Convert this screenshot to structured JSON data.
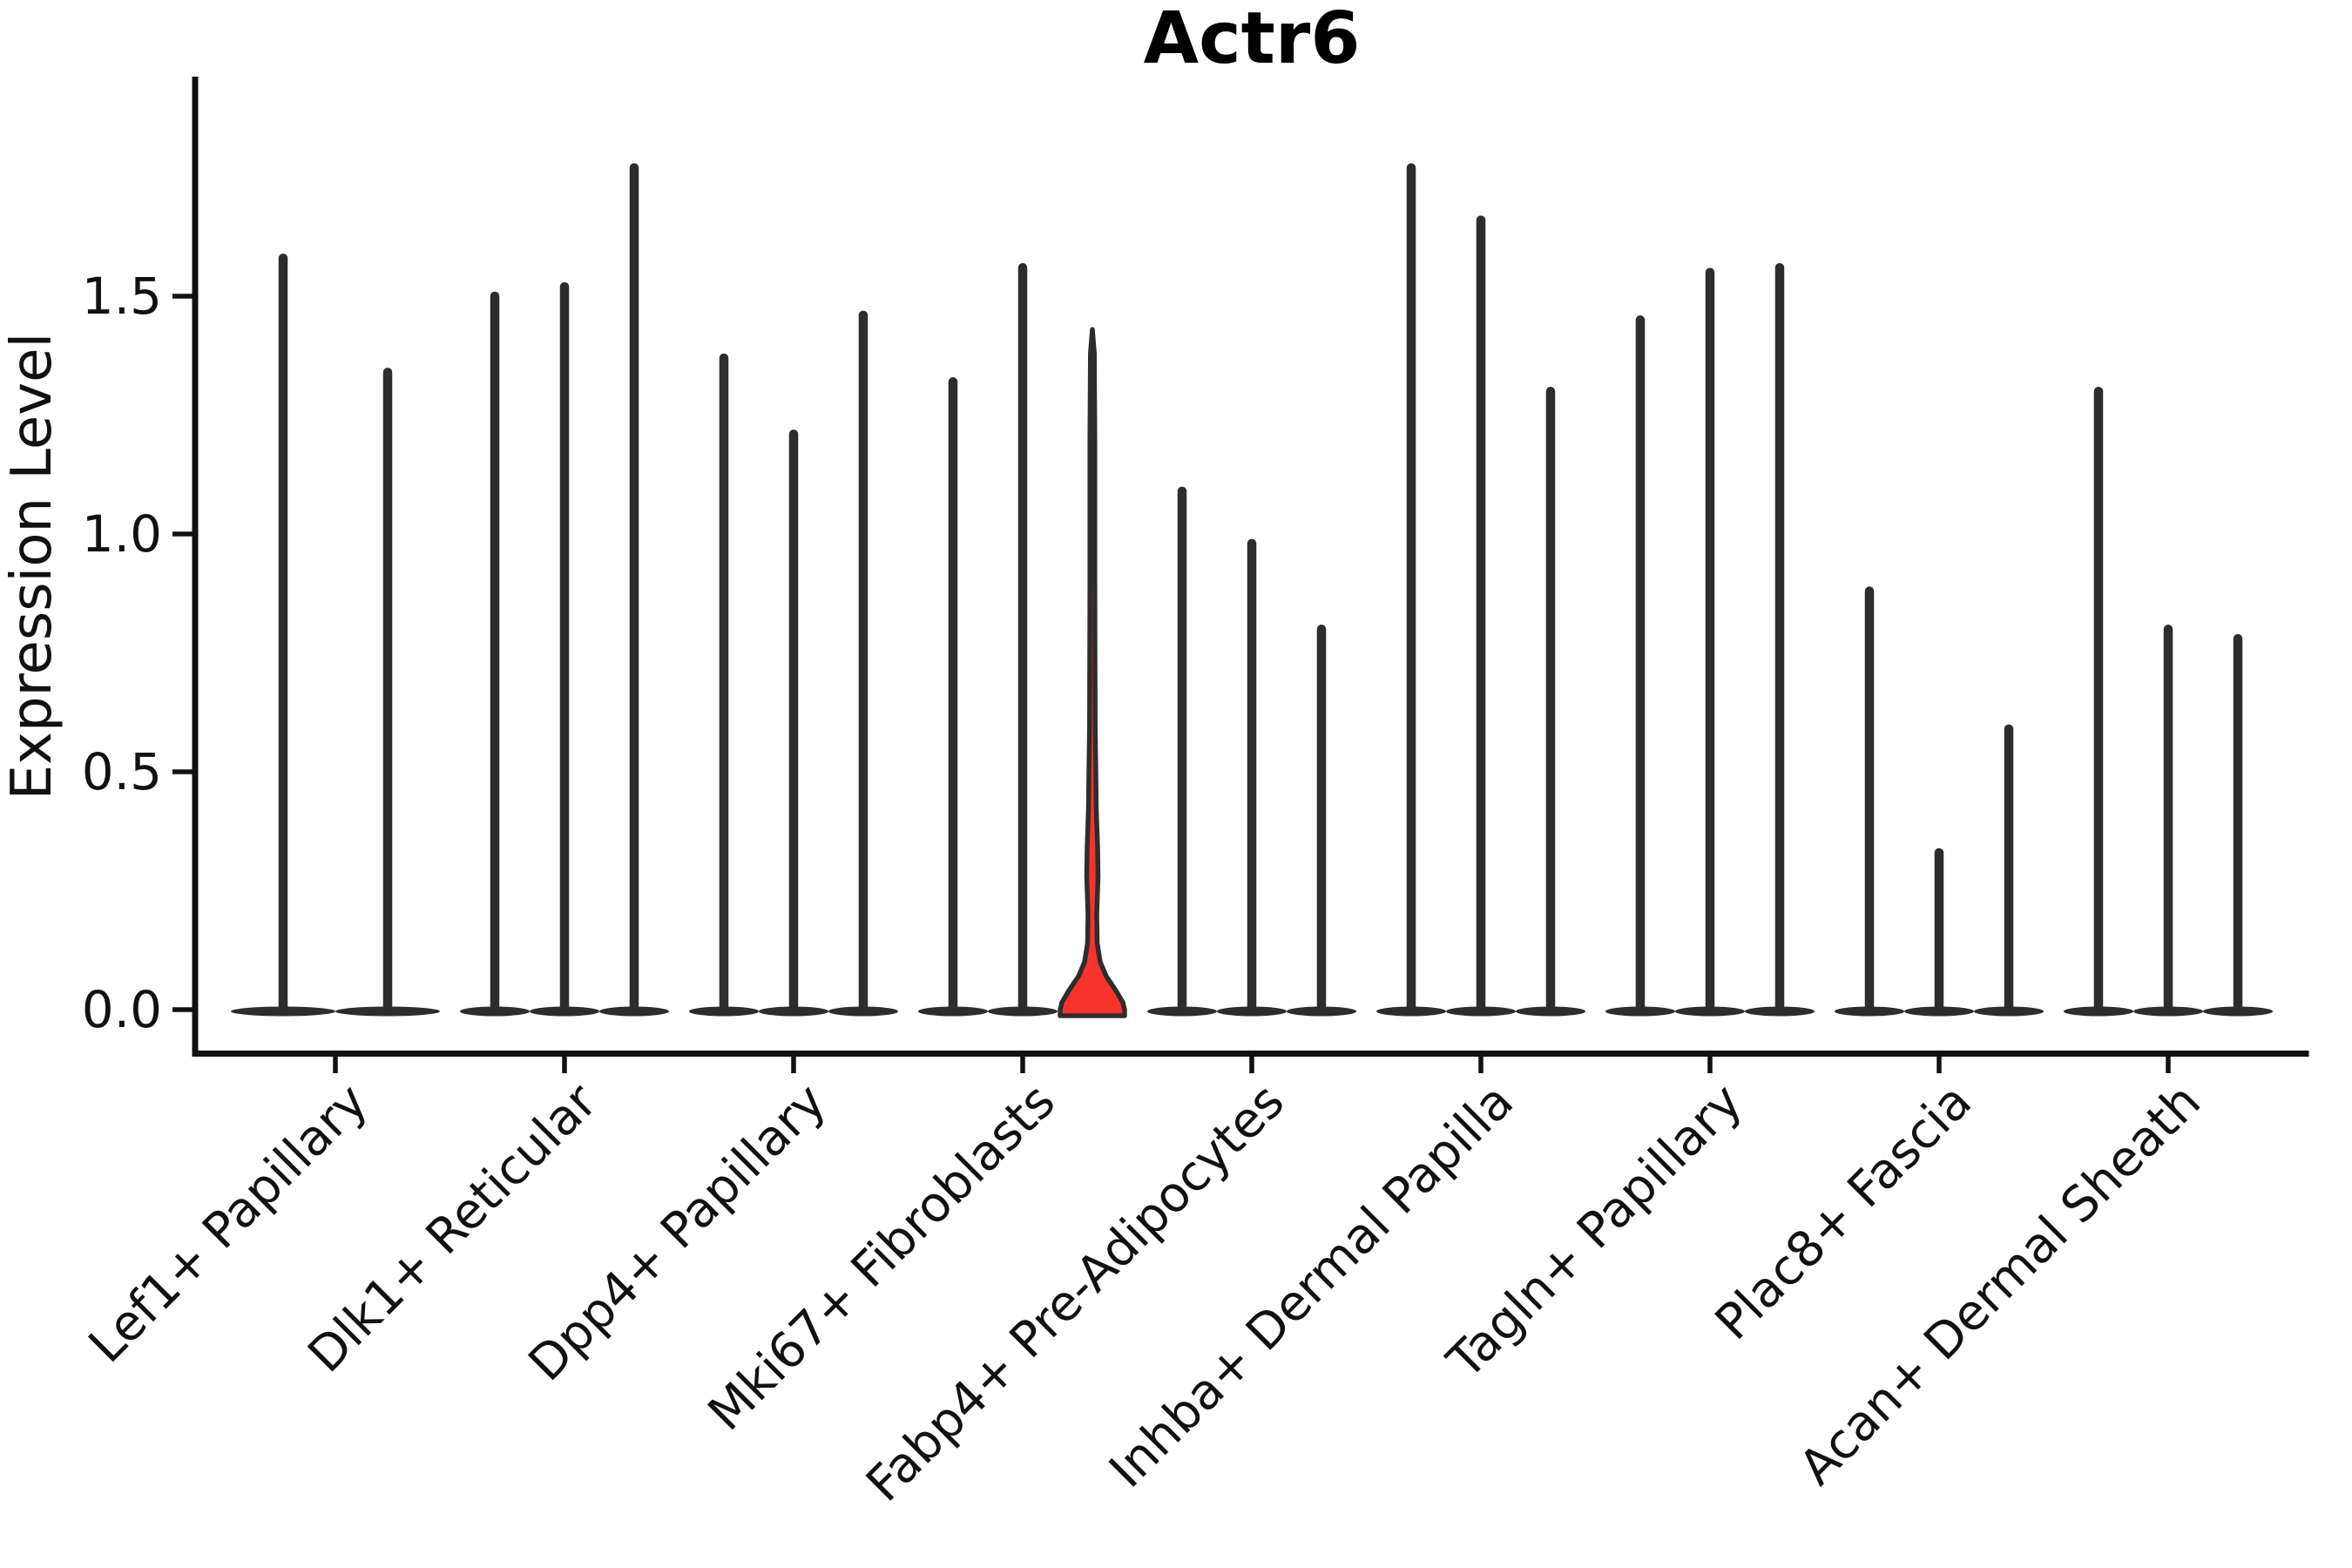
{
  "chart_data": {
    "type": "violin",
    "title": "Actr6",
    "ylabel": "Expression Level",
    "xlabel": "",
    "yticks": [
      0,
      0.5,
      1.0,
      1.5
    ],
    "ylim": [
      0,
      1.97
    ],
    "grid": false,
    "legend": "none",
    "categories": [
      "Lef1+ Papillary",
      "Dlk1+ Reticular",
      "Dpp4+ Papillary",
      "Mki67+ Fibroblasts",
      "Fabp4+ Pre-Adipocytes",
      "Inhba+ Dermal Papilla",
      "Tagln+ Papillary",
      "Plac8+ Fascia",
      "Acan+ Dermal Sheath"
    ],
    "groups": [
      {
        "category": "Lef1+ Papillary",
        "violins": [
          {
            "max": 1.58,
            "highlighted": false
          },
          {
            "max": 1.34,
            "highlighted": false
          }
        ]
      },
      {
        "category": "Dlk1+ Reticular",
        "violins": [
          {
            "max": 1.5,
            "highlighted": false
          },
          {
            "max": 1.52,
            "highlighted": false
          },
          {
            "max": 1.77,
            "highlighted": false
          }
        ]
      },
      {
        "category": "Dpp4+ Papillary",
        "violins": [
          {
            "max": 1.37,
            "highlighted": false
          },
          {
            "max": 1.21,
            "highlighted": false
          },
          {
            "max": 1.46,
            "highlighted": false
          }
        ]
      },
      {
        "category": "Mki67+ Fibroblasts",
        "violins": [
          {
            "max": 1.32,
            "highlighted": false
          },
          {
            "max": 1.56,
            "highlighted": false
          },
          {
            "max": 1.43,
            "highlighted": true
          }
        ]
      },
      {
        "category": "Fabp4+ Pre-Adipocytes",
        "violins": [
          {
            "max": 1.09,
            "highlighted": false
          },
          {
            "max": 0.98,
            "highlighted": false
          },
          {
            "max": 0.8,
            "highlighted": false
          }
        ]
      },
      {
        "category": "Inhba+ Dermal Papilla",
        "violins": [
          {
            "max": 1.77,
            "highlighted": false
          },
          {
            "max": 1.66,
            "highlighted": false
          },
          {
            "max": 1.3,
            "highlighted": false
          }
        ]
      },
      {
        "category": "Tagln+ Papillary",
        "violins": [
          {
            "max": 1.45,
            "highlighted": false
          },
          {
            "max": 1.55,
            "highlighted": false
          },
          {
            "max": 1.56,
            "highlighted": false
          }
        ]
      },
      {
        "category": "Plac8+ Fascia",
        "violins": [
          {
            "max": 0.88,
            "highlighted": false
          },
          {
            "max": 0.33,
            "highlighted": false
          },
          {
            "max": 0.59,
            "highlighted": false
          }
        ]
      },
      {
        "category": "Acan+ Dermal Sheath",
        "violins": [
          {
            "max": 1.3,
            "highlighted": false
          },
          {
            "max": 0.8,
            "highlighted": false
          },
          {
            "max": 0.78,
            "highlighted": false
          }
        ]
      }
    ],
    "colors": {
      "highlight_fill": "#f9332b",
      "violin_stroke": "#2d2d2d",
      "axis_color": "#111111",
      "text_color": "#111111",
      "background": "#ffffff"
    }
  }
}
